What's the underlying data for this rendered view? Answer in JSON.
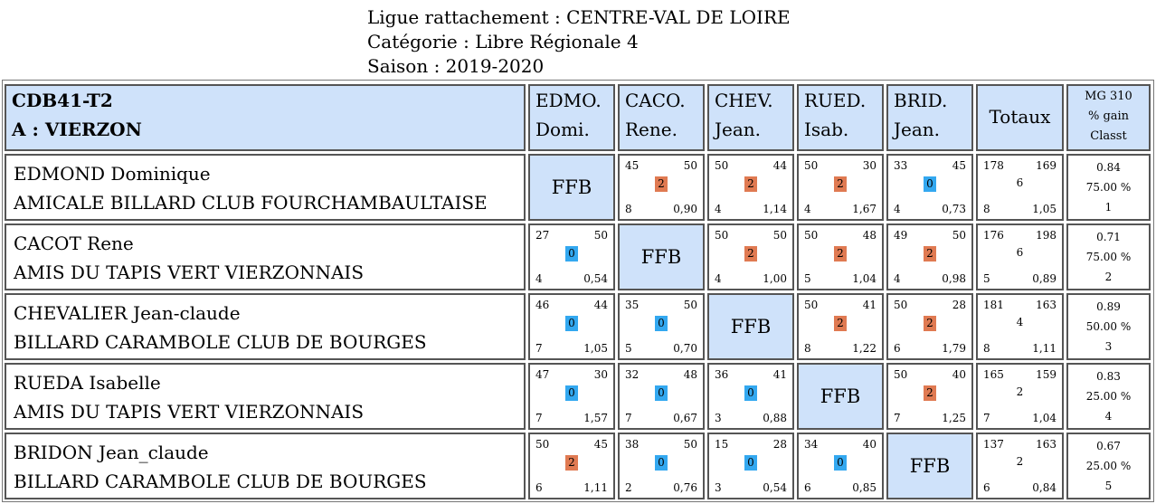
{
  "header": {
    "league": "Ligue rattachement : CENTRE-VAL DE LOIRE",
    "category": "Catégorie : Libre Régionale 4",
    "season": "Saison : 2019-2020"
  },
  "team": {
    "code": "CDB41-T2",
    "location": "A : VIERZON"
  },
  "columns": [
    {
      "l1": "EDMO.",
      "l2": "Domi."
    },
    {
      "l1": "CACO.",
      "l2": "Rene."
    },
    {
      "l1": "CHEV.",
      "l2": "Jean."
    },
    {
      "l1": "RUED.",
      "l2": "Isab."
    },
    {
      "l1": "BRID.",
      "l2": "Jean."
    }
  ],
  "totals_header": "Totaux",
  "mg_header": {
    "l1": "MG 310",
    "l2": "% gain",
    "l3": "Classt"
  },
  "ffb_label": "FFB",
  "colors": {
    "header_bg": "#cfe2fa",
    "win": "#e07a52",
    "loss": "#33a8f0",
    "border": "#555555"
  },
  "rows": [
    {
      "name": "EDMOND Dominique",
      "club": "AMICALE BILLARD CLUB FOURCHAMBAULTAISE",
      "results": [
        null,
        {
          "a": "45",
          "b": "50",
          "pts": "2",
          "win": true,
          "n": "8",
          "avg": "0,90"
        },
        {
          "a": "50",
          "b": "44",
          "pts": "2",
          "win": true,
          "n": "4",
          "avg": "1,14"
        },
        {
          "a": "50",
          "b": "30",
          "pts": "2",
          "win": true,
          "n": "4",
          "avg": "1,67"
        },
        {
          "a": "33",
          "b": "45",
          "pts": "0",
          "win": false,
          "n": "4",
          "avg": "0,73"
        }
      ],
      "totals": {
        "a": "178",
        "b": "169",
        "pts": "6",
        "n": "8",
        "avg": "1,05"
      },
      "mg": {
        "avg": "0.84",
        "pct": "75.00 %",
        "rank": "1"
      }
    },
    {
      "name": "CACOT Rene",
      "club": "AMIS DU TAPIS VERT VIERZONNAIS",
      "results": [
        {
          "a": "27",
          "b": "50",
          "pts": "0",
          "win": false,
          "n": "4",
          "avg": "0,54"
        },
        null,
        {
          "a": "50",
          "b": "50",
          "pts": "2",
          "win": true,
          "n": "4",
          "avg": "1,00"
        },
        {
          "a": "50",
          "b": "48",
          "pts": "2",
          "win": true,
          "n": "5",
          "avg": "1,04"
        },
        {
          "a": "49",
          "b": "50",
          "pts": "2",
          "win": true,
          "n": "4",
          "avg": "0,98"
        }
      ],
      "totals": {
        "a": "176",
        "b": "198",
        "pts": "6",
        "n": "5",
        "avg": "0,89"
      },
      "mg": {
        "avg": "0.71",
        "pct": "75.00 %",
        "rank": "2"
      }
    },
    {
      "name": "CHEVALIER Jean-claude",
      "club": "BILLARD CARAMBOLE CLUB DE BOURGES",
      "results": [
        {
          "a": "46",
          "b": "44",
          "pts": "0",
          "win": false,
          "n": "7",
          "avg": "1,05"
        },
        {
          "a": "35",
          "b": "50",
          "pts": "0",
          "win": false,
          "n": "5",
          "avg": "0,70"
        },
        null,
        {
          "a": "50",
          "b": "41",
          "pts": "2",
          "win": true,
          "n": "8",
          "avg": "1,22"
        },
        {
          "a": "50",
          "b": "28",
          "pts": "2",
          "win": true,
          "n": "6",
          "avg": "1,79"
        }
      ],
      "totals": {
        "a": "181",
        "b": "163",
        "pts": "4",
        "n": "8",
        "avg": "1,11"
      },
      "mg": {
        "avg": "0.89",
        "pct": "50.00 %",
        "rank": "3"
      }
    },
    {
      "name": "RUEDA Isabelle",
      "club": "AMIS DU TAPIS VERT VIERZONNAIS",
      "results": [
        {
          "a": "47",
          "b": "30",
          "pts": "0",
          "win": false,
          "n": "7",
          "avg": "1,57"
        },
        {
          "a": "32",
          "b": "48",
          "pts": "0",
          "win": false,
          "n": "7",
          "avg": "0,67"
        },
        {
          "a": "36",
          "b": "41",
          "pts": "0",
          "win": false,
          "n": "3",
          "avg": "0,88"
        },
        null,
        {
          "a": "50",
          "b": "40",
          "pts": "2",
          "win": true,
          "n": "7",
          "avg": "1,25"
        }
      ],
      "totals": {
        "a": "165",
        "b": "159",
        "pts": "2",
        "n": "7",
        "avg": "1,04"
      },
      "mg": {
        "avg": "0.83",
        "pct": "25.00 %",
        "rank": "4"
      }
    },
    {
      "name": "BRIDON Jean_claude",
      "club": "BILLARD CARAMBOLE CLUB DE BOURGES",
      "results": [
        {
          "a": "50",
          "b": "45",
          "pts": "2",
          "win": true,
          "n": "6",
          "avg": "1,11"
        },
        {
          "a": "38",
          "b": "50",
          "pts": "0",
          "win": false,
          "n": "2",
          "avg": "0,76"
        },
        {
          "a": "15",
          "b": "28",
          "pts": "0",
          "win": false,
          "n": "3",
          "avg": "0,54"
        },
        {
          "a": "34",
          "b": "40",
          "pts": "0",
          "win": false,
          "n": "6",
          "avg": "0,85"
        },
        null
      ],
      "totals": {
        "a": "137",
        "b": "163",
        "pts": "2",
        "n": "6",
        "avg": "0,84"
      },
      "mg": {
        "avg": "0.67",
        "pct": "25.00 %",
        "rank": "5"
      }
    }
  ]
}
